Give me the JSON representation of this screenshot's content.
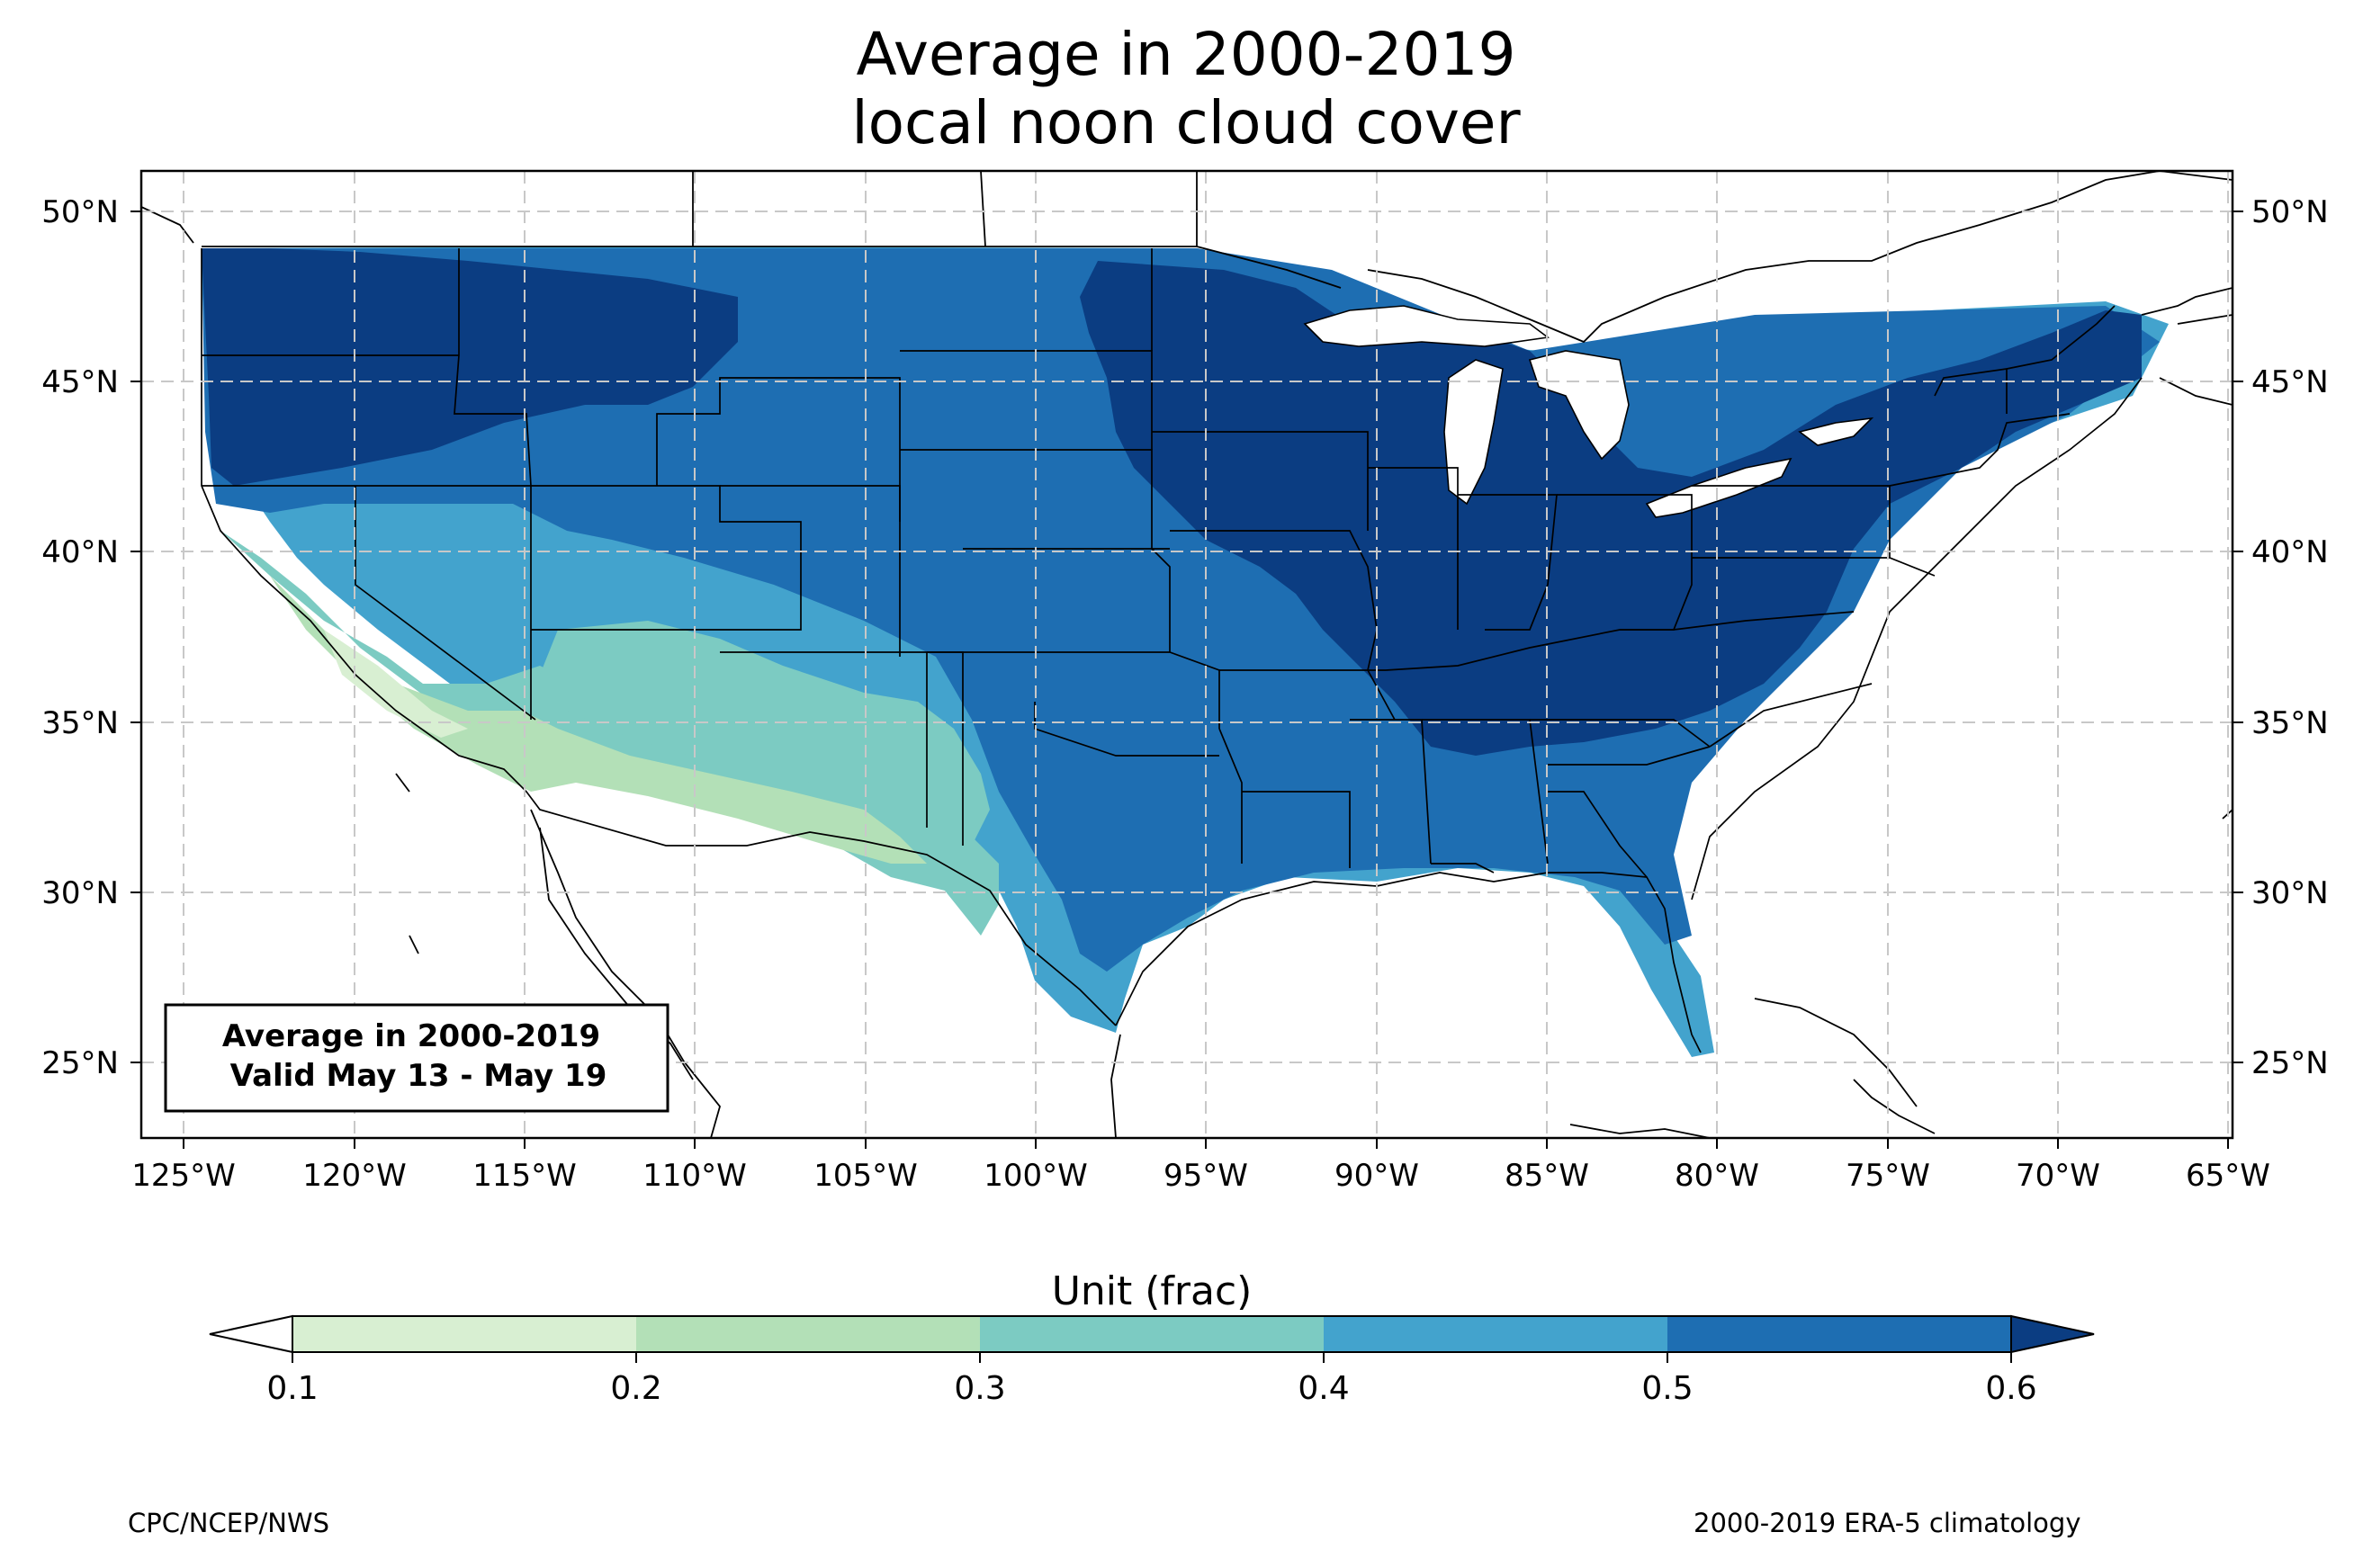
{
  "title": {
    "line1": "Average in 2000-2019",
    "line2": "local noon cloud cover"
  },
  "map": {
    "lon_labels": [
      "125°W",
      "120°W",
      "115°W",
      "110°W",
      "105°W",
      "100°W",
      "95°W",
      "90°W",
      "85°W",
      "80°W",
      "75°W",
      "70°W",
      "65°W"
    ],
    "lat_labels": [
      "50°N",
      "45°N",
      "40°N",
      "35°N",
      "30°N",
      "25°N"
    ],
    "lon_range": [
      -126.3,
      -64.9
    ],
    "lat_range": [
      22.8,
      51.2
    ],
    "projection": "PlateCarree",
    "gridlines": "dashed",
    "lat_labels_both_sides": true
  },
  "infobox": {
    "line1": "Average in 2000-2019",
    "line2": "Valid May 13 - May 19"
  },
  "colorbar": {
    "label": "Unit (frac)",
    "ticks": [
      "0.1",
      "0.2",
      "0.3",
      "0.4",
      "0.5",
      "0.6"
    ],
    "extend": "both",
    "bins": [
      {
        "range": [
          null,
          0.1
        ],
        "color": "#ffffff"
      },
      {
        "range": [
          0.1,
          0.2
        ],
        "color": "#d8efd2"
      },
      {
        "range": [
          0.2,
          0.3
        ],
        "color": "#b3e0b7"
      },
      {
        "range": [
          0.3,
          0.4
        ],
        "color": "#7ccbc2"
      },
      {
        "range": [
          0.4,
          0.5
        ],
        "color": "#43a3cd"
      },
      {
        "range": [
          0.5,
          0.6
        ],
        "color": "#1e6eb2"
      },
      {
        "range": [
          0.6,
          null
        ],
        "color": "#0b3d82"
      }
    ]
  },
  "footer": {
    "left": "CPC/NCEP/NWS",
    "right": "2000-2019 ERA-5 climatology"
  },
  "regions": {
    "pacific_northwest": "0.6+",
    "northern_rockies": "0.6+",
    "northern_plains": "0.5-0.6",
    "upper_midwest": "0.6+",
    "ohio_valley": "0.6+",
    "northeast": "0.6+",
    "southeast": "0.5-0.6",
    "florida": "0.4-0.5",
    "texas_central": "0.4-0.5",
    "southwest": "0.2-0.3",
    "california_coast": "0.3-0.4"
  }
}
